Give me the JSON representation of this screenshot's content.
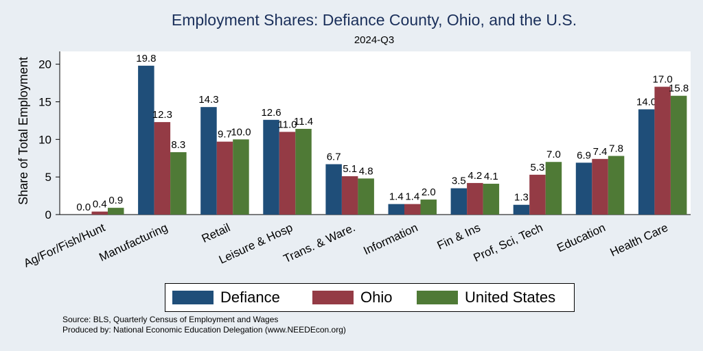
{
  "title": "Employment Shares: Defiance County, Ohio, and the U.S.",
  "subtitle": "2024-Q3",
  "source_lines": [
    "Source: BLS, Quarterly Census of Employment and Wages",
    "Produced by: National Economic Education Delegation (www.NEEDEcon.org)"
  ],
  "colors": {
    "Defiance": "#1f4e79",
    "Ohio": "#943b45",
    "United States": "#4f7a36"
  },
  "chart_data": {
    "type": "bar",
    "title": "Employment Shares: Defiance County, Ohio, and the U.S.",
    "subtitle": "2024-Q3",
    "ylabel": "Share of Total Employment",
    "xlabel": "",
    "ylim": [
      0,
      21.7
    ],
    "yticks": [
      0,
      5,
      10,
      15,
      20
    ],
    "grid": false,
    "legend_position": "bottom",
    "categories": [
      "Ag/For/Fish/Hunt",
      "Manufacturing",
      "Retail",
      "Leisure & Hosp",
      "Trans. & Ware.",
      "Information",
      "Fin & Ins",
      "Prof, Sci, Tech",
      "Education",
      "Health Care"
    ],
    "series": [
      {
        "name": "Defiance",
        "values": [
          0.0,
          19.8,
          14.3,
          12.6,
          6.7,
          1.4,
          3.5,
          1.3,
          6.9,
          14.0
        ]
      },
      {
        "name": "Ohio",
        "values": [
          0.4,
          12.3,
          9.7,
          11.0,
          5.1,
          1.4,
          4.2,
          5.3,
          7.4,
          17.0
        ]
      },
      {
        "name": "United States",
        "values": [
          0.9,
          8.3,
          10.0,
          11.4,
          4.8,
          2.0,
          4.1,
          7.0,
          7.8,
          15.8
        ]
      }
    ]
  }
}
